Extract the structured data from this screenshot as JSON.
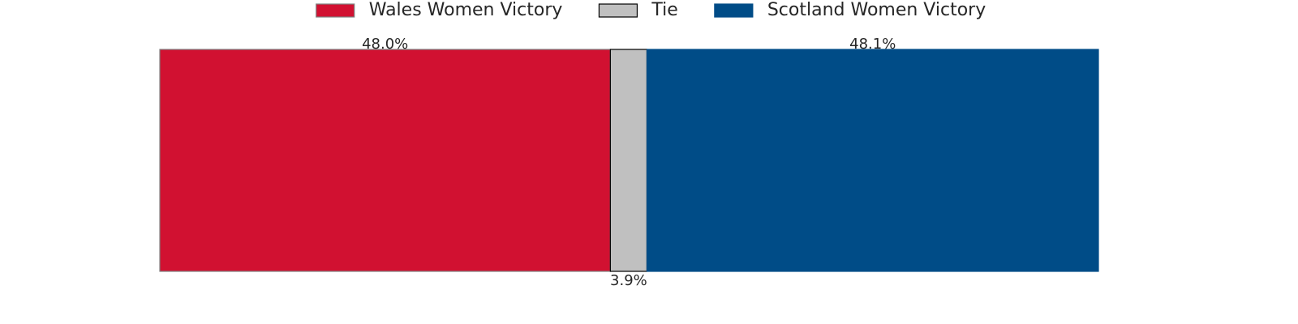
{
  "chart_data": {
    "type": "stacked-bar",
    "orientation": "horizontal",
    "series": [
      {
        "name": "Wales Women Victory",
        "color": "#d11131",
        "edge": "#808080",
        "values": [
          48.0
        ],
        "value_labels": [
          "48.0%"
        ]
      },
      {
        "name": "Tie",
        "color": "#c0c0c0",
        "edge": "#000000",
        "values": [
          3.9
        ],
        "value_labels": [
          "3.9%"
        ]
      },
      {
        "name": "Scotland Women Victory",
        "color": "#004c87",
        "edge": "#004c87",
        "values": [
          48.1
        ],
        "value_labels": [
          "48.1%"
        ]
      }
    ],
    "legend": "top"
  }
}
